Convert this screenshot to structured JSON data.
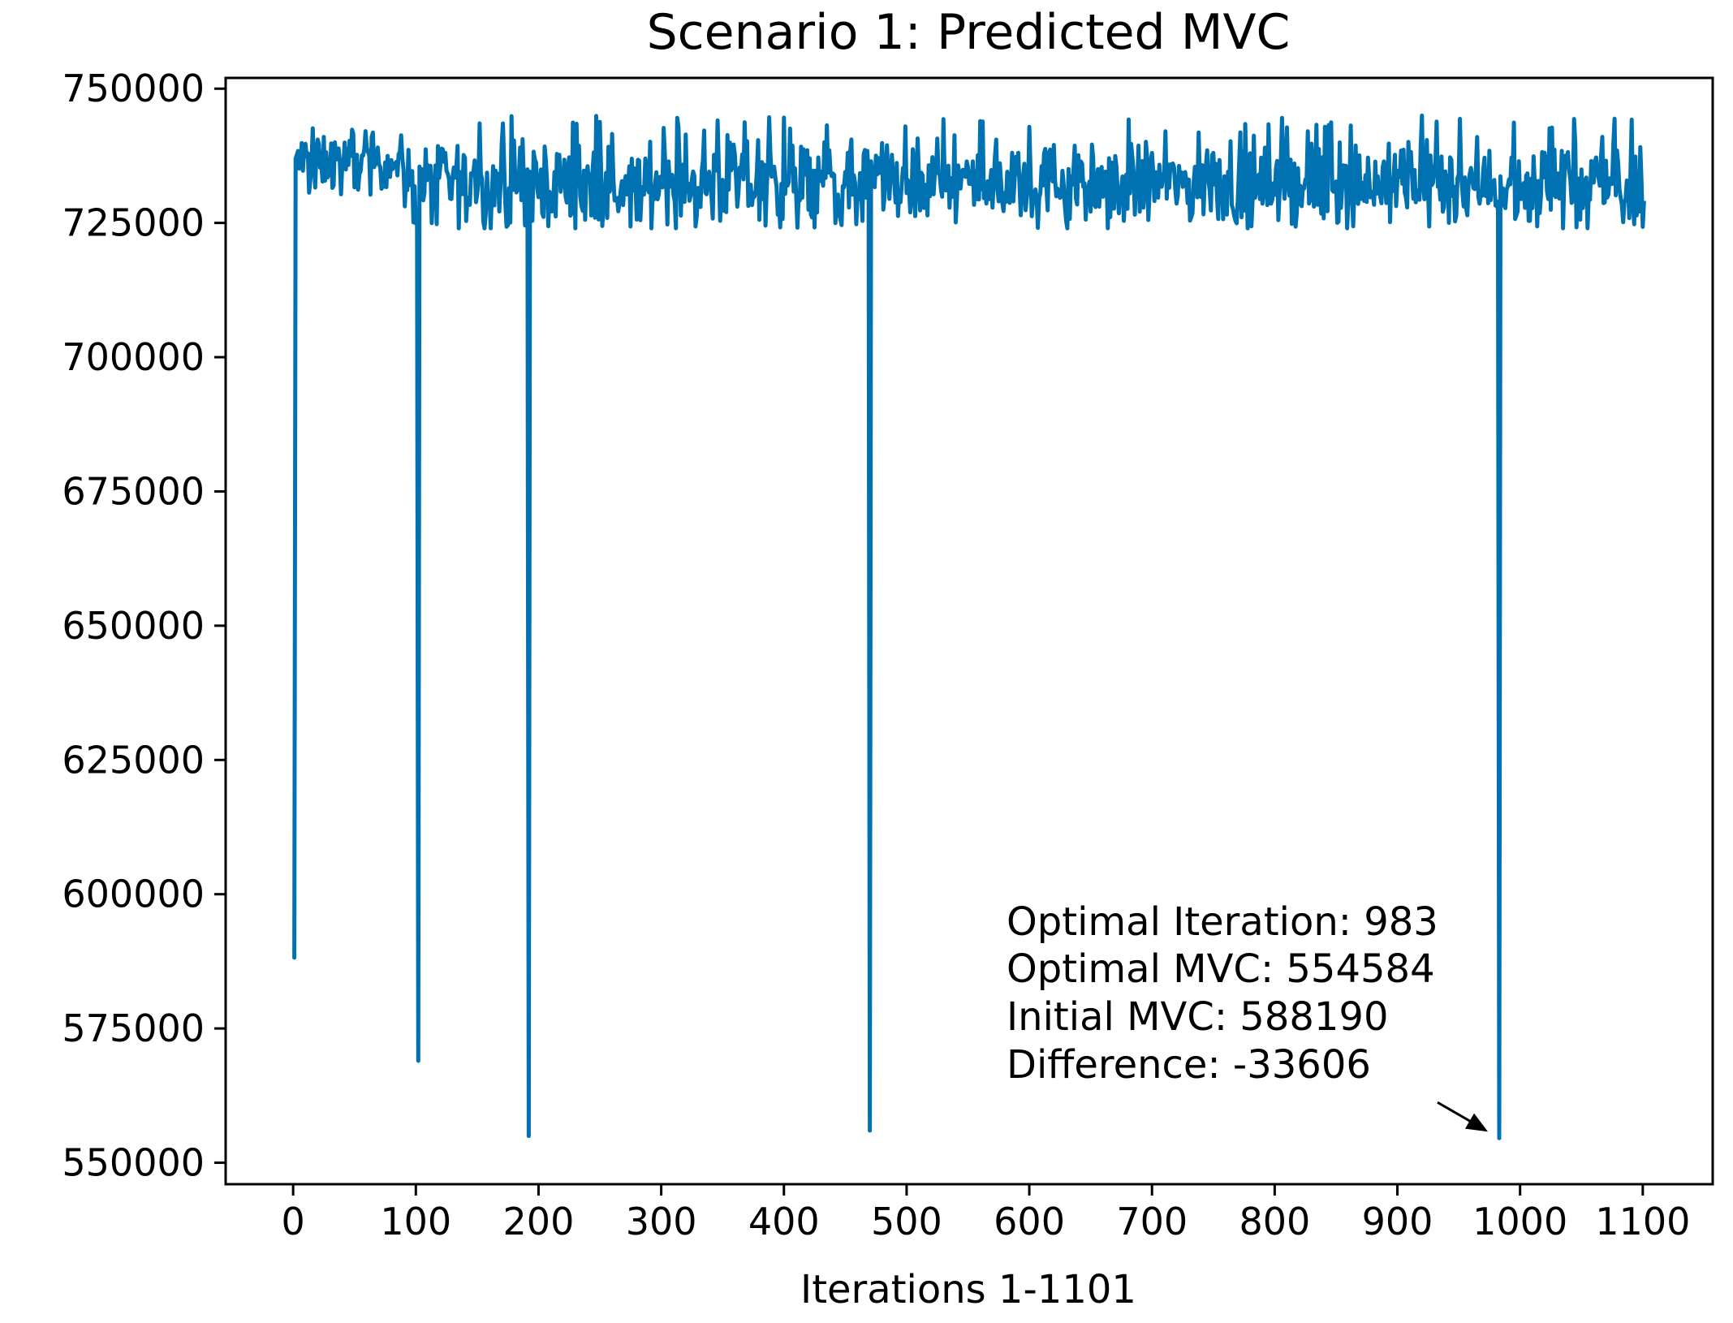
{
  "chart_data": {
    "type": "line",
    "title": "Scenario 1: Predicted MVC",
    "xlabel": "Iterations 1-1101",
    "ylabel": "",
    "xlim": [
      -55,
      1157
    ],
    "ylim": [
      546000,
      752000
    ],
    "grid": false,
    "legend": "none",
    "line_color": "#0072b2",
    "x_ticks": [
      0,
      100,
      200,
      300,
      400,
      500,
      600,
      700,
      800,
      900,
      1000,
      1100
    ],
    "x_tick_labels": [
      "0",
      "100",
      "200",
      "300",
      "400",
      "500",
      "600",
      "700",
      "800",
      "900",
      "1000",
      "1100"
    ],
    "y_ticks": [
      550000,
      575000,
      600000,
      625000,
      650000,
      675000,
      700000,
      725000,
      750000
    ],
    "y_tick_labels": [
      "550000",
      "575000",
      "600000",
      "625000",
      "650000",
      "675000",
      "700000",
      "725000",
      "750000"
    ],
    "series": [
      {
        "name": "Predicted MVC",
        "n_points": 1101,
        "baseline_segments": [
          {
            "x_start": 1,
            "x_end": 90,
            "mean": 736500,
            "low": 730000,
            "high": 744000
          },
          {
            "x_start": 90,
            "x_end": 1101,
            "mean": 732500,
            "low": 724000,
            "high": 745000
          }
        ],
        "spikes": [
          {
            "x": 1,
            "y": 588190
          },
          {
            "x": 102,
            "y": 569000
          },
          {
            "x": 192,
            "y": 555000
          },
          {
            "x": 470,
            "y": 556000
          },
          {
            "x": 983,
            "y": 554584
          }
        ]
      }
    ],
    "annotation": {
      "lines": [
        "Optimal Iteration: 983",
        "Optimal MVC: 554584",
        "Initial MVC: 588190",
        "Difference: -33606"
      ],
      "arrow_target": {
        "x": 983,
        "y": 554584
      }
    }
  }
}
